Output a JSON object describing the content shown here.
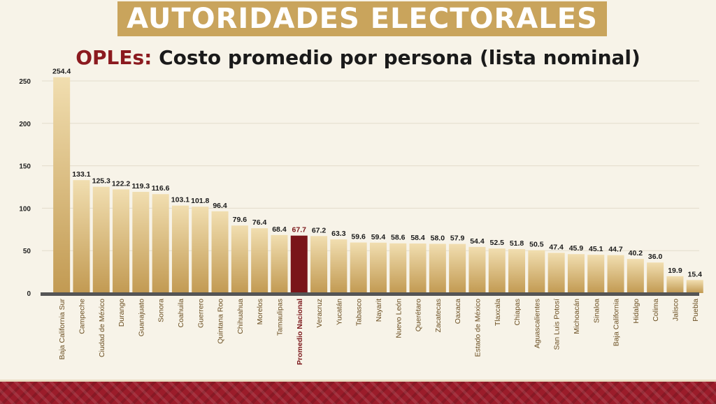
{
  "header": {
    "banner": "AUTORIDADES ELECTORALES",
    "subtitle_accent": "OPLEs:",
    "subtitle_rest": " Costo promedio por persona (lista nominal)"
  },
  "colors": {
    "banner": "#c9a45c",
    "bar_top": "#f1deb0",
    "bar_bottom": "#c29a52",
    "highlight": "#7a1519",
    "axis": "#555555"
  },
  "chart_data": {
    "type": "bar",
    "title": "",
    "xlabel": "",
    "ylabel": "",
    "ylim": [
      0,
      250
    ],
    "yticks": [
      0,
      50,
      100,
      150,
      200,
      250
    ],
    "grid": true,
    "highlight_category": "Promedio Nacional",
    "categories": [
      "Baja California Sur",
      "Campeche",
      "Ciudad de México",
      "Durango",
      "Guanajuato",
      "Sonora",
      "Coahuila",
      "Guerrero",
      "Quintana Roo",
      "Chihuahua",
      "Morelos",
      "Tamaulipas",
      "Promedio Nacional",
      "Veracruz",
      "Yucatán",
      "Tabasco",
      "Nayarit",
      "Nuevo León",
      "Querétaro",
      "Zacatecas",
      "Oaxaca",
      "Estado de México",
      "Tlaxcala",
      "Chiapas",
      "Aguascalientes",
      "San Luis Potosí",
      "Michoacán",
      "Sinaloa",
      "Baja California",
      "Hidalgo",
      "Colima",
      "Jalisco",
      "Puebla"
    ],
    "values": [
      254.4,
      133.1,
      125.3,
      122.2,
      119.3,
      116.6,
      103.1,
      101.8,
      96.4,
      79.6,
      76.4,
      68.4,
      67.7,
      67.2,
      63.3,
      59.6,
      59.4,
      58.6,
      58.4,
      58.0,
      57.9,
      54.4,
      52.5,
      51.8,
      50.5,
      47.4,
      45.9,
      45.1,
      44.7,
      40.2,
      36.0,
      19.9,
      15.4
    ],
    "value_labels": [
      "254.4",
      "133.1",
      "125.3",
      "122.2",
      "119.3",
      "116.6",
      "103.1",
      "101.8",
      "96.4",
      "79.6",
      "76.4",
      "68.4",
      "67.7",
      "67.2",
      "63.3",
      "59.6",
      "59.4",
      "58.6",
      "58.4",
      "58.0",
      "57.9",
      "54.4",
      "52.5",
      "51.8",
      "50.5",
      "47.4",
      "45.9",
      "45.1",
      "44.7",
      "40.2",
      "36.0",
      "19.9",
      "15.4"
    ]
  }
}
